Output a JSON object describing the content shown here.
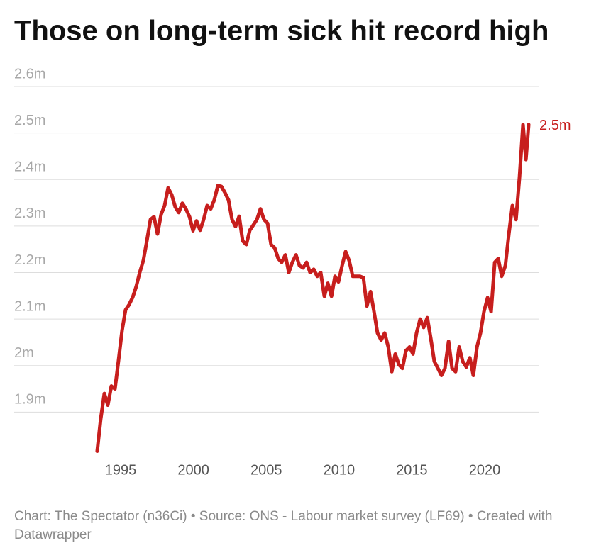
{
  "chart_data": {
    "type": "line",
    "title": "Those on long-term sick hit record high",
    "source": "Chart: The Spectator (n36Ci) • Source: ONS - Labour market survey (LF69) • Created with Datawrapper",
    "x": [
      1993.39,
      1993.63,
      1993.88,
      1994.12,
      1994.36,
      1994.61,
      1994.85,
      1995.1,
      1995.34,
      1995.58,
      1995.83,
      1996.07,
      1996.31,
      1996.56,
      1996.8,
      1997.05,
      1997.29,
      1997.53,
      1997.78,
      1998.02,
      1998.26,
      1998.51,
      1998.75,
      1998.99,
      1999.24,
      1999.48,
      1999.73,
      1999.97,
      2000.21,
      2000.46,
      2000.7,
      2000.94,
      2001.19,
      2001.43,
      2001.68,
      2001.92,
      2002.16,
      2002.41,
      2002.65,
      2002.89,
      2003.14,
      2003.38,
      2003.63,
      2003.87,
      2004.11,
      2004.36,
      2004.6,
      2004.84,
      2005.09,
      2005.33,
      2005.58,
      2005.82,
      2006.06,
      2006.31,
      2006.55,
      2006.79,
      2007.04,
      2007.28,
      2007.53,
      2007.77,
      2008.01,
      2008.26,
      2008.5,
      2008.74,
      2008.99,
      2009.23,
      2009.48,
      2009.72,
      2009.96,
      2010.21,
      2010.45,
      2010.69,
      2010.94,
      2011.18,
      2011.43,
      2011.67,
      2011.91,
      2012.16,
      2012.4,
      2012.64,
      2012.89,
      2013.13,
      2013.38,
      2013.62,
      2013.86,
      2014.11,
      2014.35,
      2014.59,
      2014.84,
      2015.08,
      2015.32,
      2015.57,
      2015.81,
      2016.06,
      2016.3,
      2016.54,
      2016.79,
      2017.03,
      2017.27,
      2017.52,
      2017.76,
      2018.0,
      2018.25,
      2018.49,
      2018.74,
      2018.98,
      2019.22,
      2019.47,
      2019.71,
      2019.95,
      2020.2,
      2020.44,
      2020.69,
      2020.93,
      2021.17,
      2021.42,
      2021.66,
      2021.9,
      2022.15,
      2022.39,
      2022.63,
      2022.83,
      2023.02
    ],
    "series": [
      {
        "color": "#c71e1d",
        "end_label": "2.5m",
        "values": [
          1.816,
          1.885,
          1.94,
          1.915,
          1.956,
          1.95,
          2.01,
          2.076,
          2.12,
          2.131,
          2.147,
          2.17,
          2.2,
          2.226,
          2.268,
          2.314,
          2.32,
          2.283,
          2.325,
          2.344,
          2.382,
          2.367,
          2.341,
          2.329,
          2.349,
          2.337,
          2.32,
          2.29,
          2.311,
          2.291,
          2.314,
          2.344,
          2.337,
          2.356,
          2.387,
          2.385,
          2.372,
          2.356,
          2.314,
          2.299,
          2.321,
          2.268,
          2.26,
          2.291,
          2.302,
          2.314,
          2.337,
          2.314,
          2.306,
          2.26,
          2.253,
          2.23,
          2.222,
          2.238,
          2.2,
          2.222,
          2.238,
          2.215,
          2.21,
          2.222,
          2.2,
          2.207,
          2.192,
          2.2,
          2.149,
          2.177,
          2.149,
          2.192,
          2.18,
          2.215,
          2.245,
          2.226,
          2.192,
          2.192,
          2.192,
          2.189,
          2.128,
          2.159,
          2.116,
          2.07,
          2.055,
          2.07,
          2.04,
          1.987,
          2.025,
          2.002,
          1.994,
          2.032,
          2.04,
          2.025,
          2.07,
          2.1,
          2.082,
          2.103,
          2.058,
          2.009,
          1.994,
          1.979,
          1.994,
          2.052,
          1.994,
          1.987,
          2.04,
          2.009,
          1.997,
          2.017,
          1.979,
          2.04,
          2.07,
          2.116,
          2.146,
          2.116,
          2.222,
          2.23,
          2.192,
          2.215,
          2.283,
          2.344,
          2.314,
          2.405,
          2.518,
          2.443,
          2.518
        ]
      }
    ],
    "xlim": [
      1987.69,
      2023.75
    ],
    "xticks": [
      1995,
      2000,
      2005,
      2010,
      2015,
      2020
    ],
    "ylim": [
      1.8,
      2.6
    ],
    "yticks": [
      {
        "value": 1.9,
        "label": "1.9m"
      },
      {
        "value": 2.0,
        "label": "2m"
      },
      {
        "value": 2.1,
        "label": "2.1m"
      },
      {
        "value": 2.2,
        "label": "2.2m"
      },
      {
        "value": 2.3,
        "label": "2.3m"
      },
      {
        "value": 2.4,
        "label": "2.4m"
      },
      {
        "value": 2.5,
        "label": "2.5m"
      },
      {
        "value": 2.6,
        "label": "2.6m"
      }
    ],
    "grid": true
  }
}
